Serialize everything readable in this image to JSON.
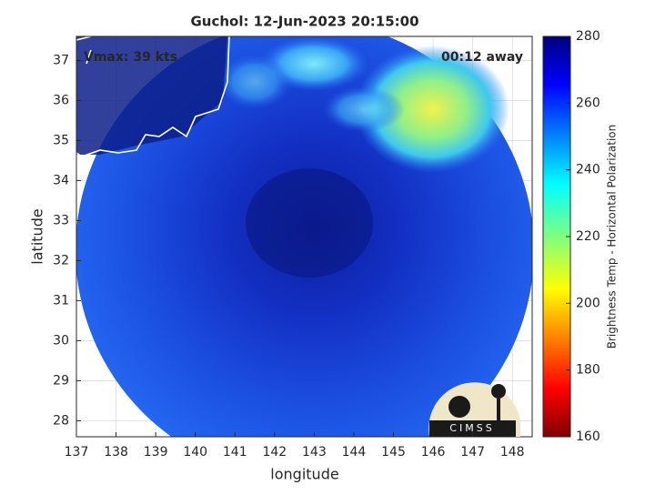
{
  "chart_data": {
    "type": "image",
    "title": "Guchol: 12-Jun-2023 20:15:00",
    "annotations": [
      "Vmax: 39 kts",
      "00:12 away"
    ],
    "x_label": "longitude",
    "y_label": "latitude",
    "xlim": [
      137,
      148.5
    ],
    "ylim": [
      27.6,
      37.6
    ],
    "xticks": [
      137,
      138,
      139,
      140,
      141,
      142,
      143,
      144,
      145,
      146,
      147,
      148
    ],
    "yticks": [
      28,
      29,
      30,
      31,
      32,
      33,
      34,
      35,
      36,
      37
    ],
    "grid": true,
    "colorbar": {
      "label": "Brightness Temp - Horizontal Polarization",
      "clim": [
        160,
        280
      ],
      "ticks": [
        160,
        180,
        200,
        220,
        240,
        260,
        280
      ]
    },
    "logo": "CIMSS"
  }
}
